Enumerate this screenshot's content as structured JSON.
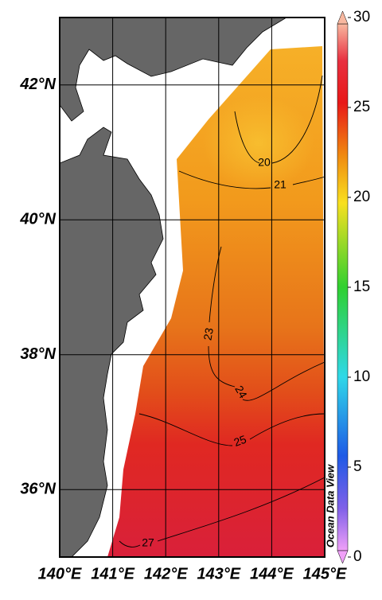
{
  "map": {
    "xlim": [
      140,
      145
    ],
    "ylim": [
      35,
      43
    ],
    "xticks": [
      {
        "value": 140,
        "label": "140°E"
      },
      {
        "value": 141,
        "label": "141°E"
      },
      {
        "value": 142,
        "label": "142°E"
      },
      {
        "value": 143,
        "label": "143°E"
      },
      {
        "value": 144,
        "label": "144°E"
      },
      {
        "value": 145,
        "label": "145°E"
      }
    ],
    "yticks": [
      {
        "value": 36,
        "label": "36°N"
      },
      {
        "value": 38,
        "label": "38°N"
      },
      {
        "value": 40,
        "label": "40°N"
      },
      {
        "value": 42,
        "label": "42°N"
      }
    ],
    "contour_labels": [
      20,
      21,
      23,
      24,
      25,
      27
    ]
  },
  "colorbar": {
    "lim": [
      0,
      30
    ],
    "ticks": [
      0,
      5,
      10,
      15,
      20,
      25,
      30
    ]
  },
  "watermark": "Ocean Data View"
}
